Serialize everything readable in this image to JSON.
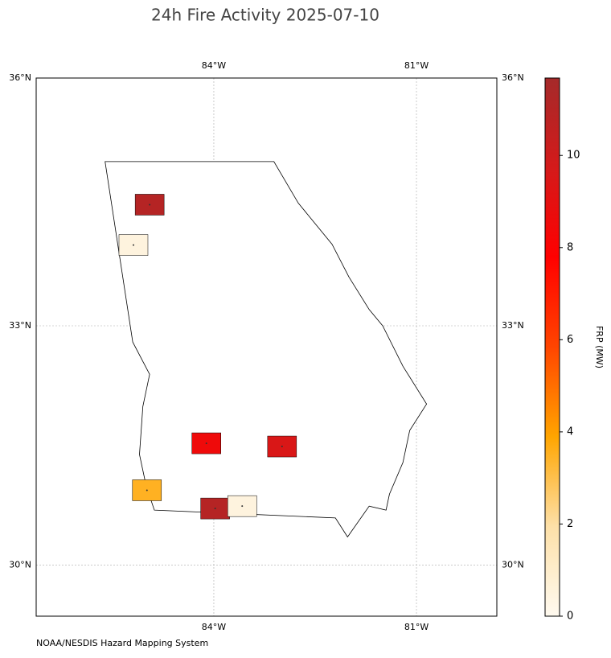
{
  "chart_data": {
    "type": "map",
    "title": "24h Fire Activity 2025-07-10",
    "source": "NOAA/NESDIS Hazard Mapping System",
    "projection": "mercator",
    "xlim": [
      -86.63,
      -79.81
    ],
    "ylim": [
      29.35,
      36
    ],
    "xticks": [
      {
        "value": -84,
        "label": "84°W"
      },
      {
        "value": -81,
        "label": "81°W"
      }
    ],
    "yticks": [
      {
        "value": 30,
        "label": "30°N"
      },
      {
        "value": 33,
        "label": "33°N"
      },
      {
        "value": 36,
        "label": "36°N"
      }
    ],
    "grid": true,
    "outline": {
      "lon": [
        -85.61,
        -83.11,
        -82.75,
        -82.25,
        -82.0,
        -81.7,
        -81.5,
        -81.2,
        -80.85,
        -81.1,
        -81.2,
        -81.4,
        -81.45,
        -81.7,
        -82.02,
        -82.2,
        -84.88,
        -85.0,
        -85.1,
        -85.05,
        -84.95,
        -85.2,
        -85.61
      ],
      "lat": [
        35.0,
        35.0,
        34.5,
        34.0,
        33.6,
        33.2,
        33.0,
        32.5,
        32.03,
        31.7,
        31.3,
        30.9,
        30.7,
        30.75,
        30.36,
        30.6,
        30.7,
        31.0,
        31.4,
        32.0,
        32.4,
        32.8,
        35.0
      ]
    },
    "fires": {
      "lon": [
        -84.95,
        -85.19,
        -84.11,
        -82.99,
        -84.99,
        -83.98,
        -83.58
      ],
      "lat": [
        34.48,
        33.99,
        31.54,
        31.5,
        30.95,
        30.72,
        30.75
      ],
      "values": [
        11,
        0.5,
        8.5,
        9.5,
        3.5,
        11,
        0.5
      ]
    },
    "colorbar": {
      "label": "FRP (MW)",
      "lim": [
        0,
        11.68
      ],
      "ticks": [
        0,
        2,
        4,
        6,
        8,
        10
      ],
      "colors": [
        "#fffaf0",
        "#fde0a8",
        "#ffa500",
        "#ff4500",
        "#ff0000",
        "#d41a1a",
        "#a52a2a"
      ]
    }
  }
}
